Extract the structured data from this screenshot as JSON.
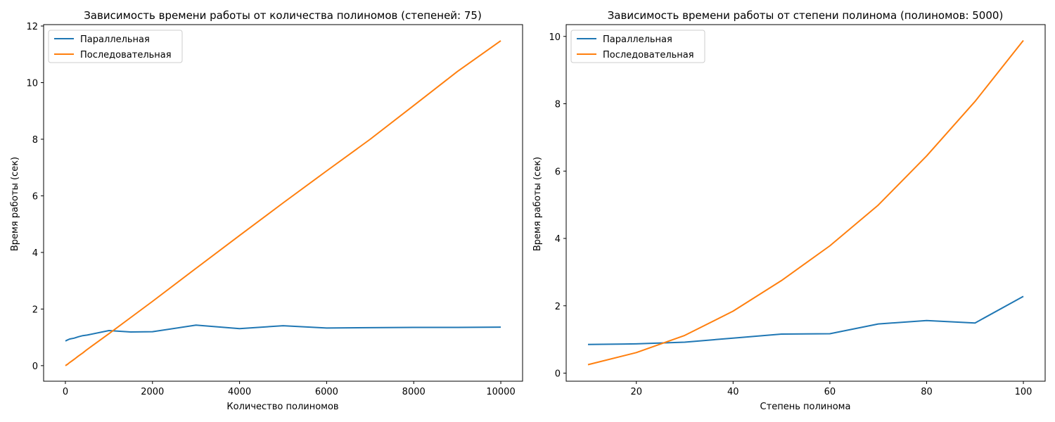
{
  "chart_data": [
    {
      "type": "line",
      "title": "Зависимость времени работы от количества полиномов (степеней: 75)",
      "xlabel": "Количество полиномов",
      "ylabel": "Время работы (сек)",
      "xlim": [
        -500,
        10500
      ],
      "ylim": [
        -0.55,
        12.05
      ],
      "xticks": [
        0,
        2000,
        4000,
        6000,
        8000,
        10000
      ],
      "yticks": [
        0,
        2,
        4,
        6,
        8,
        10,
        12
      ],
      "grid": false,
      "legend": "top-left",
      "series": [
        {
          "name": "Параллельная",
          "color": "#1f77b4",
          "x": [
            1,
            50,
            100,
            200,
            300,
            400,
            500,
            1000,
            1500,
            2000,
            3000,
            4000,
            5000,
            6000,
            7000,
            8000,
            9000,
            10000
          ],
          "y": [
            0.87,
            0.91,
            0.94,
            0.97,
            1.02,
            1.06,
            1.08,
            1.24,
            1.19,
            1.2,
            1.43,
            1.31,
            1.41,
            1.33,
            1.34,
            1.35,
            1.35,
            1.36
          ]
        },
        {
          "name": "Последовательная",
          "color": "#ff7f0e",
          "x": [
            1,
            50,
            100,
            200,
            300,
            400,
            500,
            1000,
            1500,
            2000,
            3000,
            4000,
            5000,
            6000,
            7000,
            8000,
            9000,
            10000
          ],
          "y": [
            0.0,
            0.05,
            0.11,
            0.22,
            0.34,
            0.45,
            0.57,
            1.13,
            1.7,
            2.27,
            3.44,
            4.6,
            5.75,
            6.88,
            8.0,
            9.19,
            10.39,
            11.48
          ]
        }
      ]
    },
    {
      "type": "line",
      "title": "Зависимость времени работы от степени полинома (полиномов: 5000)",
      "xlabel": "Степень полинома",
      "ylabel": "Время работы (сек)",
      "xlim": [
        5.5,
        104.5
      ],
      "ylim": [
        -0.24,
        10.35
      ],
      "xticks": [
        20,
        40,
        60,
        80,
        100
      ],
      "yticks": [
        0,
        2,
        4,
        6,
        8,
        10
      ],
      "grid": false,
      "legend": "top-left",
      "series": [
        {
          "name": "Параллельная",
          "color": "#1f77b4",
          "x": [
            10,
            20,
            30,
            40,
            50,
            60,
            70,
            80,
            90,
            100
          ],
          "y": [
            0.85,
            0.87,
            0.92,
            1.04,
            1.16,
            1.17,
            1.46,
            1.56,
            1.49,
            2.28
          ]
        },
        {
          "name": "Последовательная",
          "color": "#ff7f0e",
          "x": [
            10,
            20,
            30,
            40,
            50,
            60,
            70,
            80,
            90,
            100
          ],
          "y": [
            0.25,
            0.61,
            1.12,
            1.84,
            2.75,
            3.78,
            4.99,
            6.45,
            8.07,
            9.88
          ]
        }
      ]
    }
  ]
}
